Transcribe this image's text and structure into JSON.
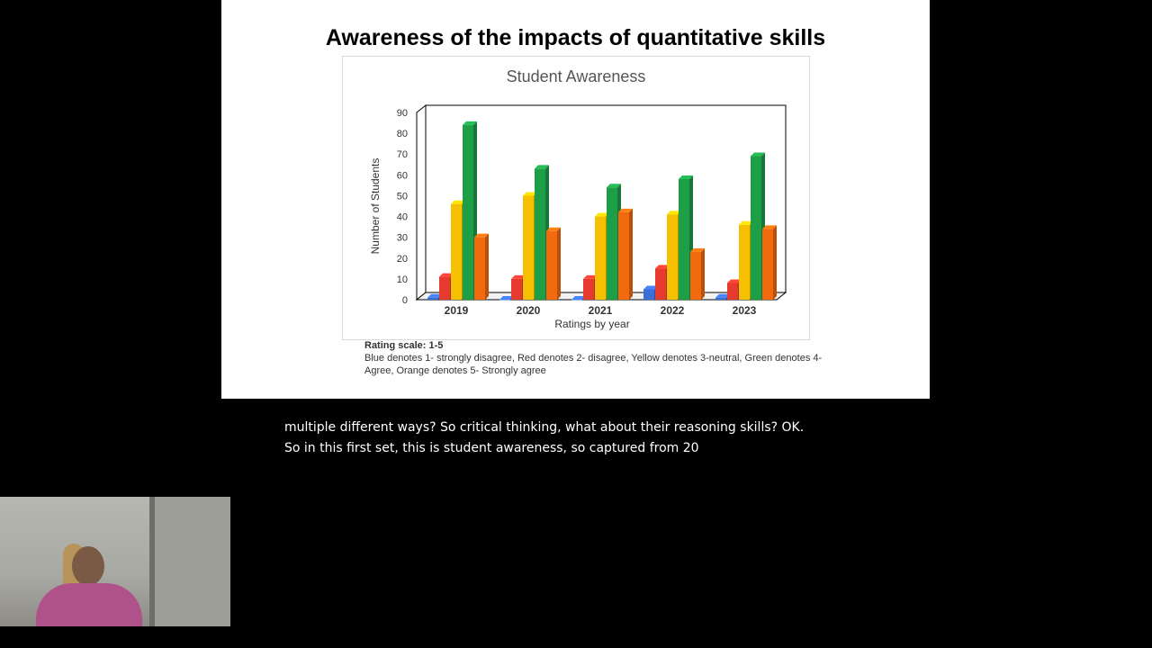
{
  "slide": {
    "title": "Awareness of the impacts of quantitative skills",
    "caption_scale": "Rating scale: 1-5",
    "caption_text": "Blue denotes 1- strongly disagree, Red denotes 2- disagree, Yellow denotes 3-neutral, Green denotes 4- Agree, Orange denotes 5- Strongly agree"
  },
  "chart_data": {
    "type": "bar",
    "title": "Student Awareness",
    "xlabel": "Ratings by year",
    "ylabel": "Number of Students",
    "categories": [
      "2019",
      "2020",
      "2021",
      "2022",
      "2023"
    ],
    "ylim": [
      0,
      90
    ],
    "yticks": [
      0,
      10,
      20,
      30,
      40,
      50,
      60,
      70,
      80,
      90
    ],
    "legend": "none",
    "grid": false,
    "series": [
      {
        "name": "",
        "color": "#3a6fd8",
        "values": [
          1,
          0,
          0,
          5,
          1
        ]
      },
      {
        "name": "",
        "color": "#e53a2e",
        "values": [
          11,
          10,
          10,
          15,
          8
        ]
      },
      {
        "name": "",
        "color": "#f5c000",
        "values": [
          46,
          50,
          40,
          41,
          36
        ]
      },
      {
        "name": "",
        "color": "#1f9e48",
        "values": [
          84,
          63,
          54,
          58,
          69
        ]
      },
      {
        "name": "",
        "color": "#f26a0d",
        "values": [
          30,
          33,
          42,
          23,
          34
        ]
      }
    ]
  },
  "subtitles": {
    "line1": "multiple different ways? So critical thinking, what about their reasoning skills? OK.",
    "line2": "So in this first set, this is student awareness, so captured from 20"
  }
}
